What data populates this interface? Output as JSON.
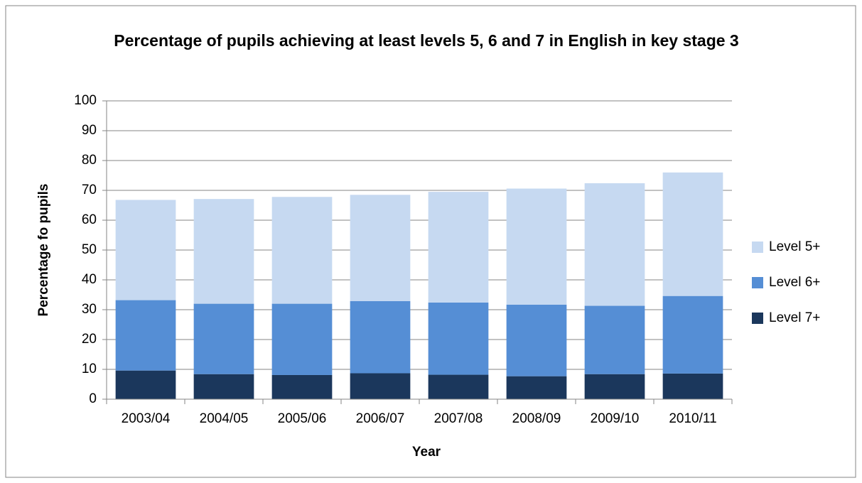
{
  "chart_data": {
    "type": "stacked_bar",
    "title": "Percentage of pupils achieving at least levels 5, 6 and 7 in English in key stage 3",
    "x_label": "Year",
    "y_label": "Percentage fo pupils",
    "categories": [
      "2003/04",
      "2004/05",
      "2005/06",
      "2006/07",
      "2007/08",
      "2008/09",
      "2009/10",
      "2010/11"
    ],
    "series": [
      {
        "name": "Level 5+",
        "color": "#c6d9f1",
        "values": [
          33.6,
          35.1,
          35.8,
          35.6,
          37.1,
          38.9,
          41.1,
          41.4
        ]
      },
      {
        "name": "Level 6+",
        "color": "#558ed5",
        "values": [
          23.6,
          23.6,
          23.9,
          24.2,
          24.2,
          24.0,
          22.9,
          26.0
        ]
      },
      {
        "name": "Level 7+",
        "color": "#1b375c",
        "values": [
          9.6,
          8.4,
          8.1,
          8.7,
          8.2,
          7.7,
          8.4,
          8.6
        ]
      }
    ],
    "ylim": [
      0,
      100
    ],
    "yticks": [
      0,
      10,
      20,
      30,
      40,
      50,
      60,
      70,
      80,
      90,
      100
    ],
    "grid": true,
    "legend": "right"
  }
}
